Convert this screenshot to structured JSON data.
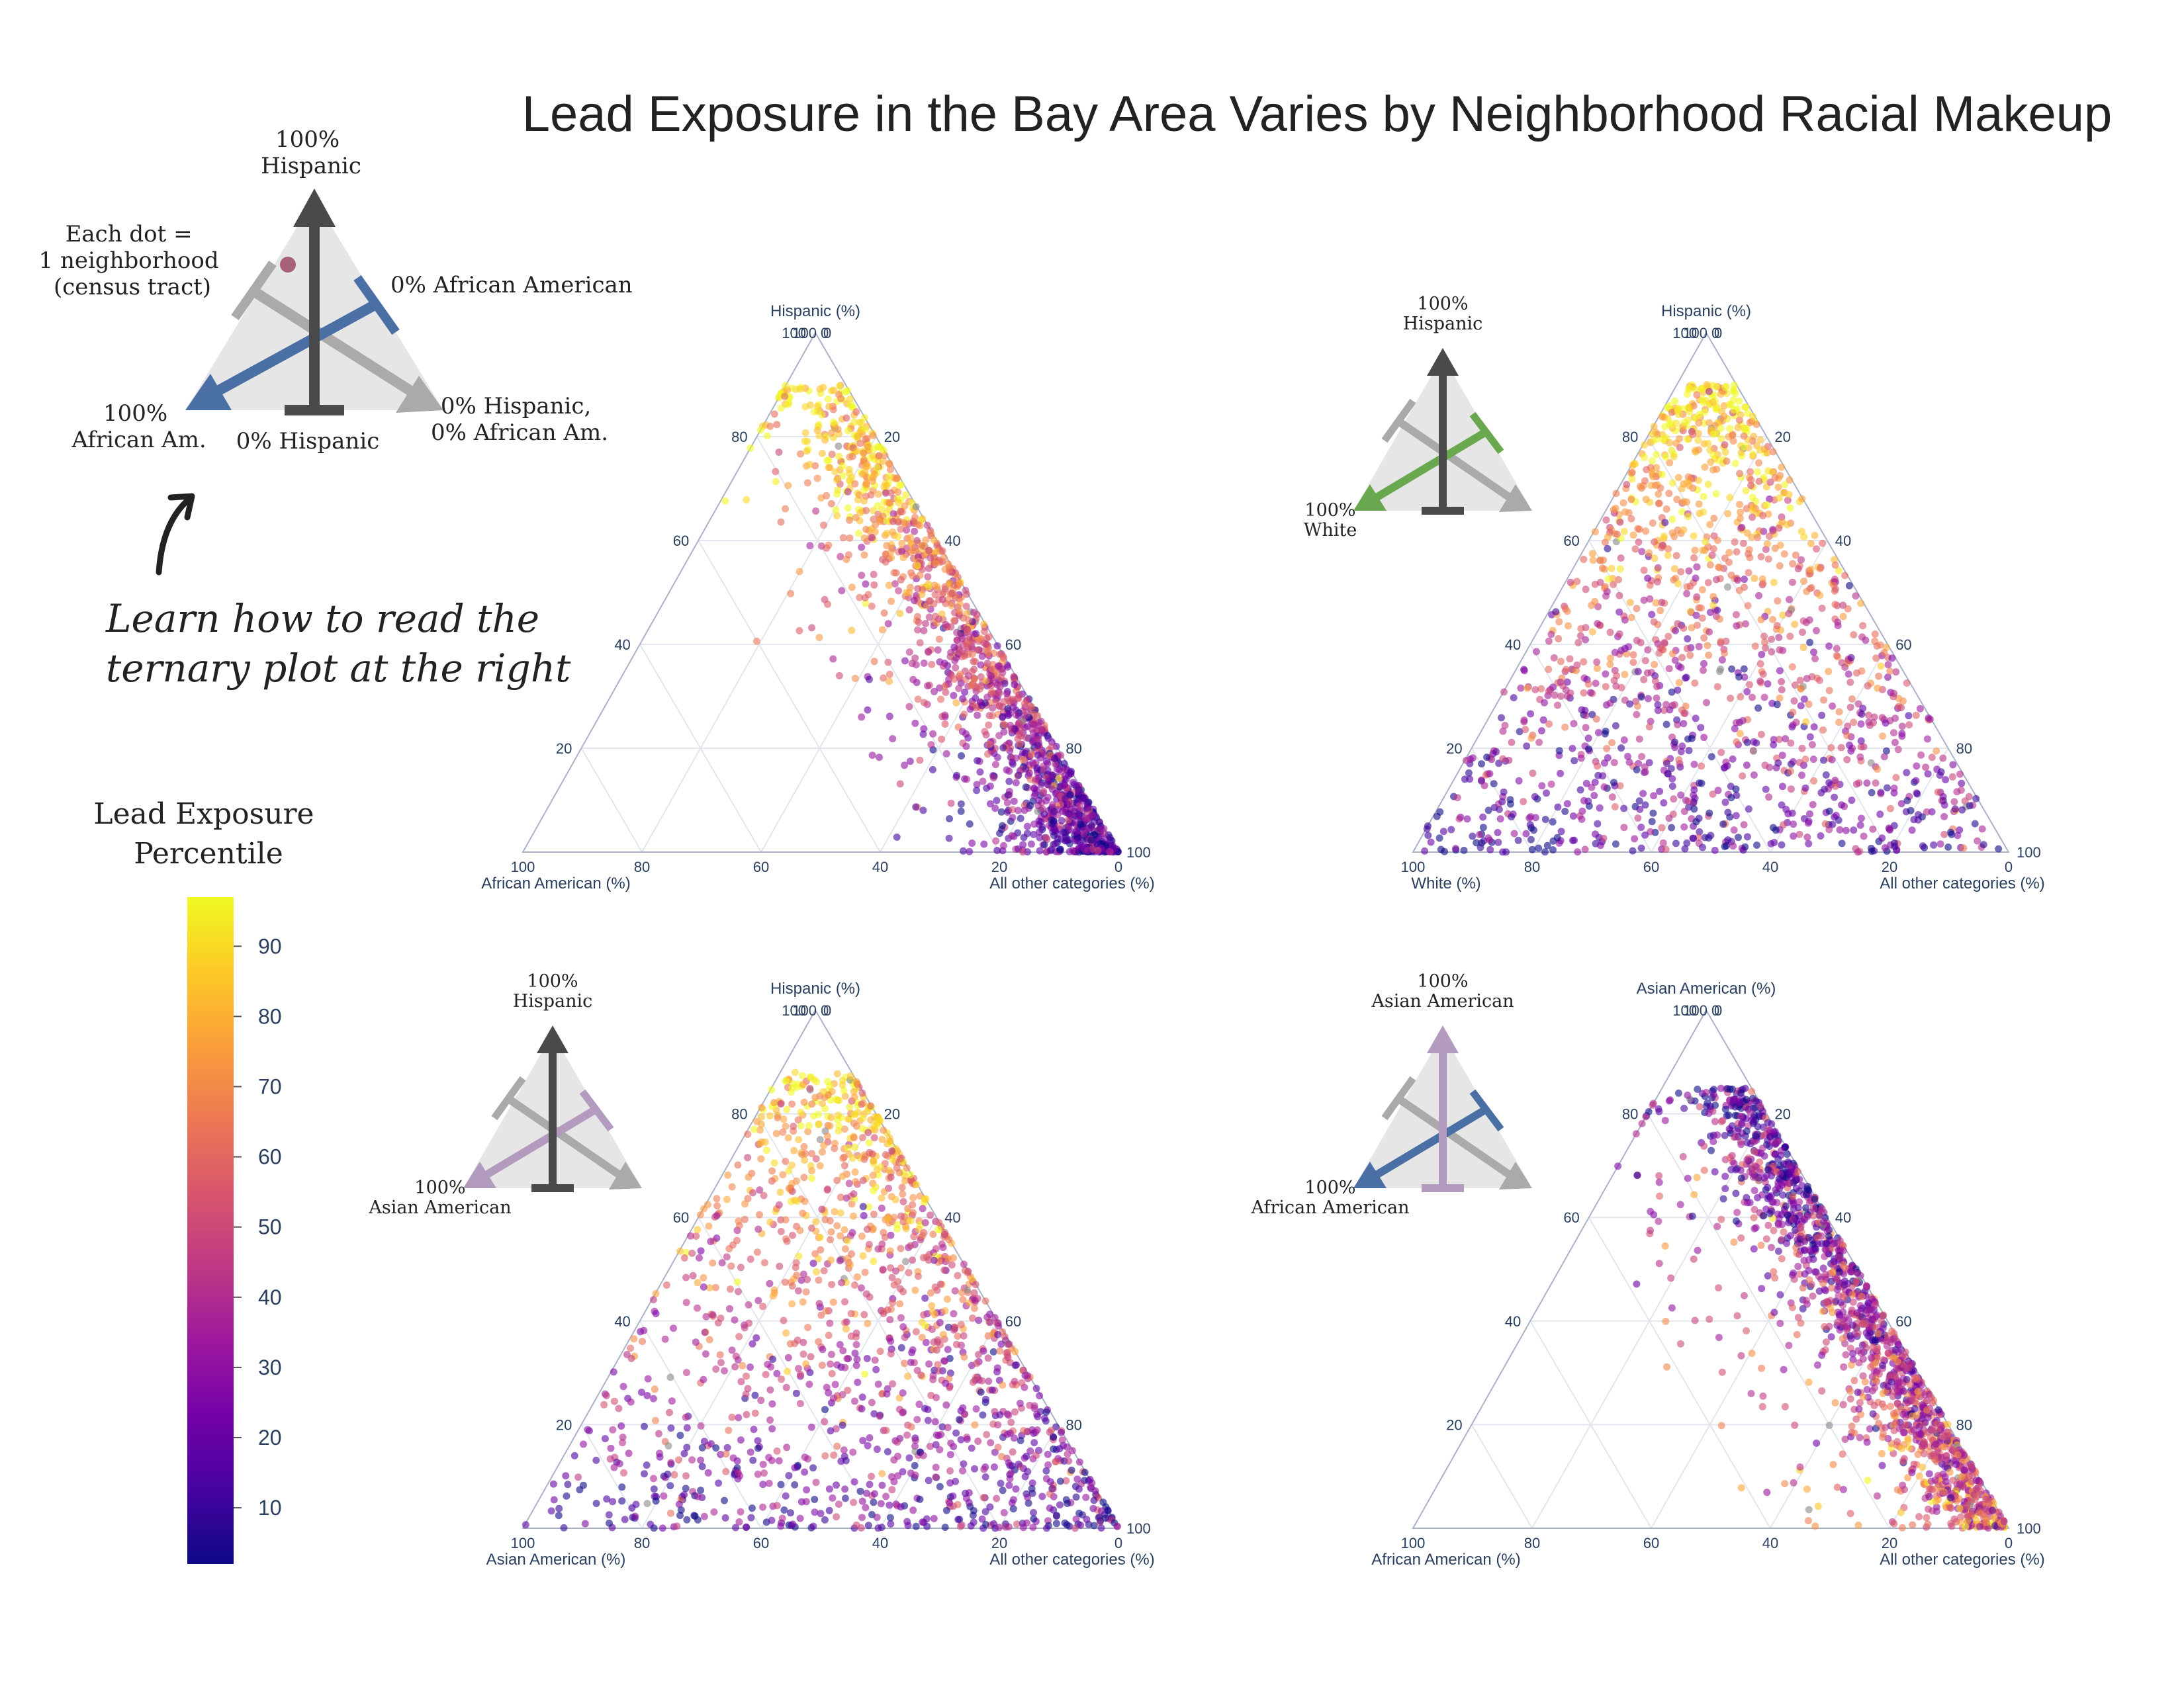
{
  "title": "Lead Exposure in the Bay Area Varies by Neighborhood Racial Makeup",
  "guide": {
    "top_label": [
      "100%",
      "Hispanic"
    ],
    "dot_label": [
      "Each dot =",
      "1 neighborhood",
      "(census tract)"
    ],
    "right_upper": "0% African American",
    "left_label": [
      "100%",
      "African Am."
    ],
    "bottom_label": "0% Hispanic",
    "right_lower": [
      "0% Hispanic,",
      "0% African Am."
    ],
    "learn": [
      "Learn how to read the",
      "ternary plot at the right"
    ]
  },
  "colorbar": {
    "title": [
      "Lead Exposure",
      "Percentile"
    ],
    "ticks": [
      10,
      20,
      30,
      40,
      50,
      60,
      70,
      80,
      90
    ],
    "range": [
      2,
      97
    ]
  },
  "colors": {
    "dark_axis": "#4a4a4a",
    "gray_axis": "#aaaaaa",
    "african_american": "#4a6fa5",
    "white": "#6aa84f",
    "asian_american": "#b39bc0",
    "triangle_fill": "#e6e6e6",
    "grid": "#e3e6ef",
    "frame": "#aab2c8",
    "tick_text": "#2a3f5f"
  },
  "chart_data": [
    {
      "type": "scatter",
      "subtype": "ternary",
      "axes": {
        "top": "Hispanic (%)",
        "left": "African American (%)",
        "right": "All other categories (%)"
      },
      "range": [
        0,
        100
      ],
      "ticks": [
        0,
        20,
        40,
        60,
        80,
        100
      ],
      "grid": true,
      "inset_labels": [],
      "color_variable": "Lead Exposure Percentile",
      "points_note": "approx. 1500 census tracts"
    },
    {
      "type": "scatter",
      "subtype": "ternary",
      "axes": {
        "top": "Hispanic (%)",
        "left": "White (%)",
        "right": "All other categories (%)"
      },
      "range": [
        0,
        100
      ],
      "ticks": [
        0,
        20,
        40,
        60,
        80,
        100
      ],
      "grid": true,
      "inset_labels": [
        [
          "100%",
          "Hispanic"
        ],
        [
          "100%",
          "White"
        ]
      ],
      "color_variable": "Lead Exposure Percentile",
      "points_note": "approx. 1500 census tracts"
    },
    {
      "type": "scatter",
      "subtype": "ternary",
      "axes": {
        "top": "Hispanic (%)",
        "left": "Asian American (%)",
        "right": "All other categories (%)"
      },
      "range": [
        0,
        100
      ],
      "ticks": [
        0,
        20,
        40,
        60,
        80,
        100
      ],
      "grid": true,
      "inset_labels": [
        [
          "100%",
          "Hispanic"
        ],
        [
          "100%",
          "Asian American"
        ]
      ],
      "color_variable": "Lead Exposure Percentile",
      "points_note": "approx. 1500 census tracts"
    },
    {
      "type": "scatter",
      "subtype": "ternary",
      "axes": {
        "top": "Asian American (%)",
        "left": "African American (%)",
        "right": "All other categories (%)"
      },
      "range": [
        0,
        100
      ],
      "ticks": [
        0,
        20,
        40,
        60,
        80,
        100
      ],
      "grid": true,
      "inset_labels": [
        [
          "100%",
          "Asian American"
        ],
        [
          "100%",
          "African American"
        ]
      ],
      "color_variable": "Lead Exposure Percentile",
      "points_note": "approx. 1500 census tracts"
    }
  ]
}
